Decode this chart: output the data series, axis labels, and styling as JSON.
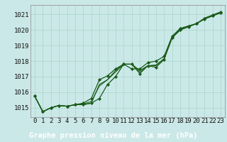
{
  "title": "Graphe pression niveau de la mer (hPa)",
  "plot_bg": "#cbe8e8",
  "label_bg": "#2d6b2d",
  "label_fg": "#ffffff",
  "line_color": "#1a5c1a",
  "xlim": [
    -0.5,
    23.5
  ],
  "ylim": [
    1014.4,
    1021.6
  ],
  "yticks": [
    1015,
    1016,
    1017,
    1018,
    1019,
    1020,
    1021
  ],
  "xticks": [
    0,
    1,
    2,
    3,
    4,
    5,
    6,
    7,
    8,
    9,
    10,
    11,
    12,
    13,
    14,
    15,
    16,
    17,
    18,
    19,
    20,
    21,
    22,
    23
  ],
  "series": [
    [
      1015.75,
      1014.75,
      1015.0,
      1015.15,
      1015.1,
      1015.2,
      1015.2,
      1015.3,
      1015.6,
      1016.5,
      1017.0,
      1017.8,
      1017.8,
      1017.2,
      1017.7,
      1017.6,
      1018.1,
      1019.5,
      1020.0,
      1020.2,
      1020.4,
      1020.7,
      1020.9,
      1021.1
    ],
    [
      1015.75,
      1014.75,
      1015.0,
      1015.15,
      1015.1,
      1015.2,
      1015.2,
      1015.3,
      1016.5,
      1016.8,
      1017.3,
      1017.8,
      1017.8,
      1017.3,
      1017.7,
      1017.7,
      1018.15,
      1019.5,
      1020.0,
      1020.2,
      1020.4,
      1020.7,
      1020.9,
      1021.1
    ],
    [
      1015.75,
      1014.75,
      1015.0,
      1015.15,
      1015.1,
      1015.2,
      1015.25,
      1015.4,
      1016.4,
      1016.8,
      1017.4,
      1017.8,
      1017.8,
      1017.4,
      1017.7,
      1017.75,
      1018.15,
      1019.55,
      1020.05,
      1020.25,
      1020.4,
      1020.75,
      1020.95,
      1021.15
    ],
    [
      1015.75,
      1014.75,
      1015.0,
      1015.15,
      1015.1,
      1015.2,
      1015.3,
      1015.6,
      1016.8,
      1017.05,
      1017.5,
      1017.8,
      1017.5,
      1017.5,
      1017.9,
      1018.0,
      1018.3,
      1019.6,
      1020.1,
      1020.25,
      1020.4,
      1020.75,
      1020.95,
      1021.15
    ]
  ],
  "marker_series": [
    0,
    3
  ],
  "tick_fontsize": 6.5,
  "label_fontsize": 7.5
}
